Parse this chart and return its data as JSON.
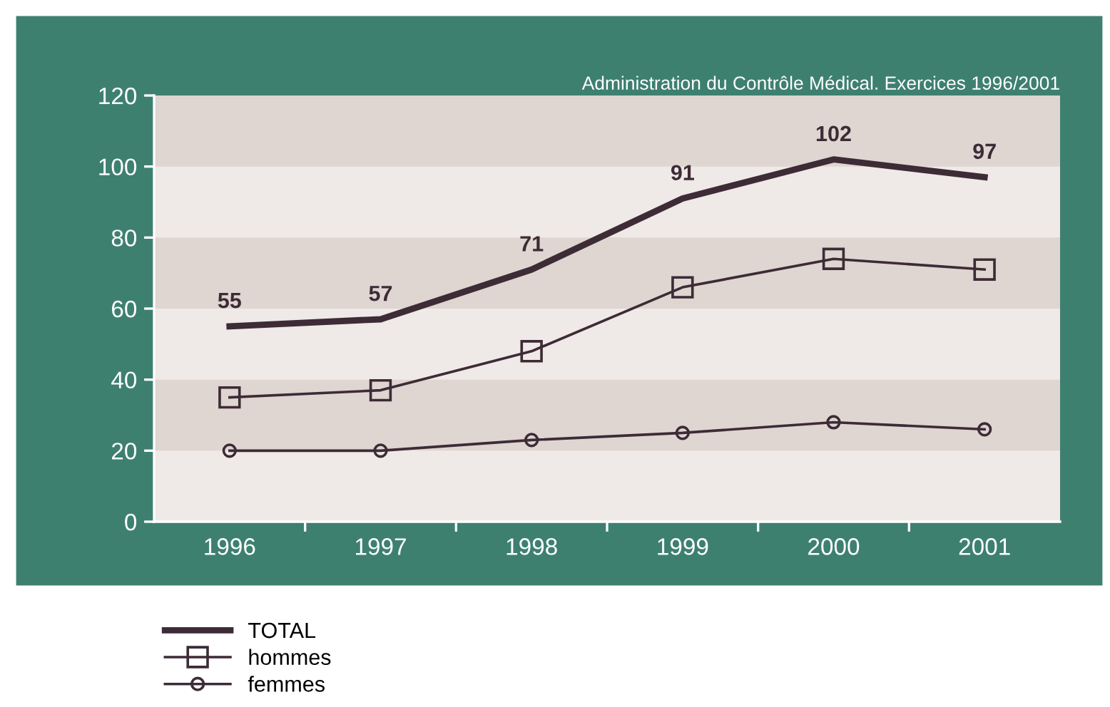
{
  "chart_data": {
    "type": "line",
    "title": "Administration du Contrôle Médical. Exercices 1996/2001",
    "categories": [
      "1996",
      "1997",
      "1998",
      "1999",
      "2000",
      "2001"
    ],
    "series": [
      {
        "name": "TOTAL",
        "color": "#3d2b36",
        "values": [
          55,
          57,
          71,
          91,
          102,
          97
        ],
        "value_labels": [
          "55",
          "57",
          "71",
          "91",
          "102",
          "97"
        ],
        "marker": "none"
      },
      {
        "name": "hommes",
        "color": "#3d2b36",
        "values": [
          35,
          37,
          48,
          66,
          74,
          71
        ],
        "marker": "square"
      },
      {
        "name": "femmes",
        "color": "#3d2b36",
        "values": [
          20,
          20,
          23,
          25,
          28,
          26
        ],
        "marker": "circle"
      }
    ],
    "ylim": [
      0,
      120
    ],
    "yticks": [
      0,
      20,
      40,
      60,
      80,
      100,
      120
    ],
    "bands": [
      {
        "axis": "y",
        "from": 20,
        "to": 40,
        "color": "#dfd5d1"
      },
      {
        "axis": "y",
        "from": 60,
        "to": 80,
        "color": "#dfd5d1"
      },
      {
        "axis": "y",
        "from": 100,
        "to": 120,
        "color": "#dfd5d1"
      }
    ],
    "grid": false,
    "legend": "bottom left",
    "line_style": "solid"
  }
}
